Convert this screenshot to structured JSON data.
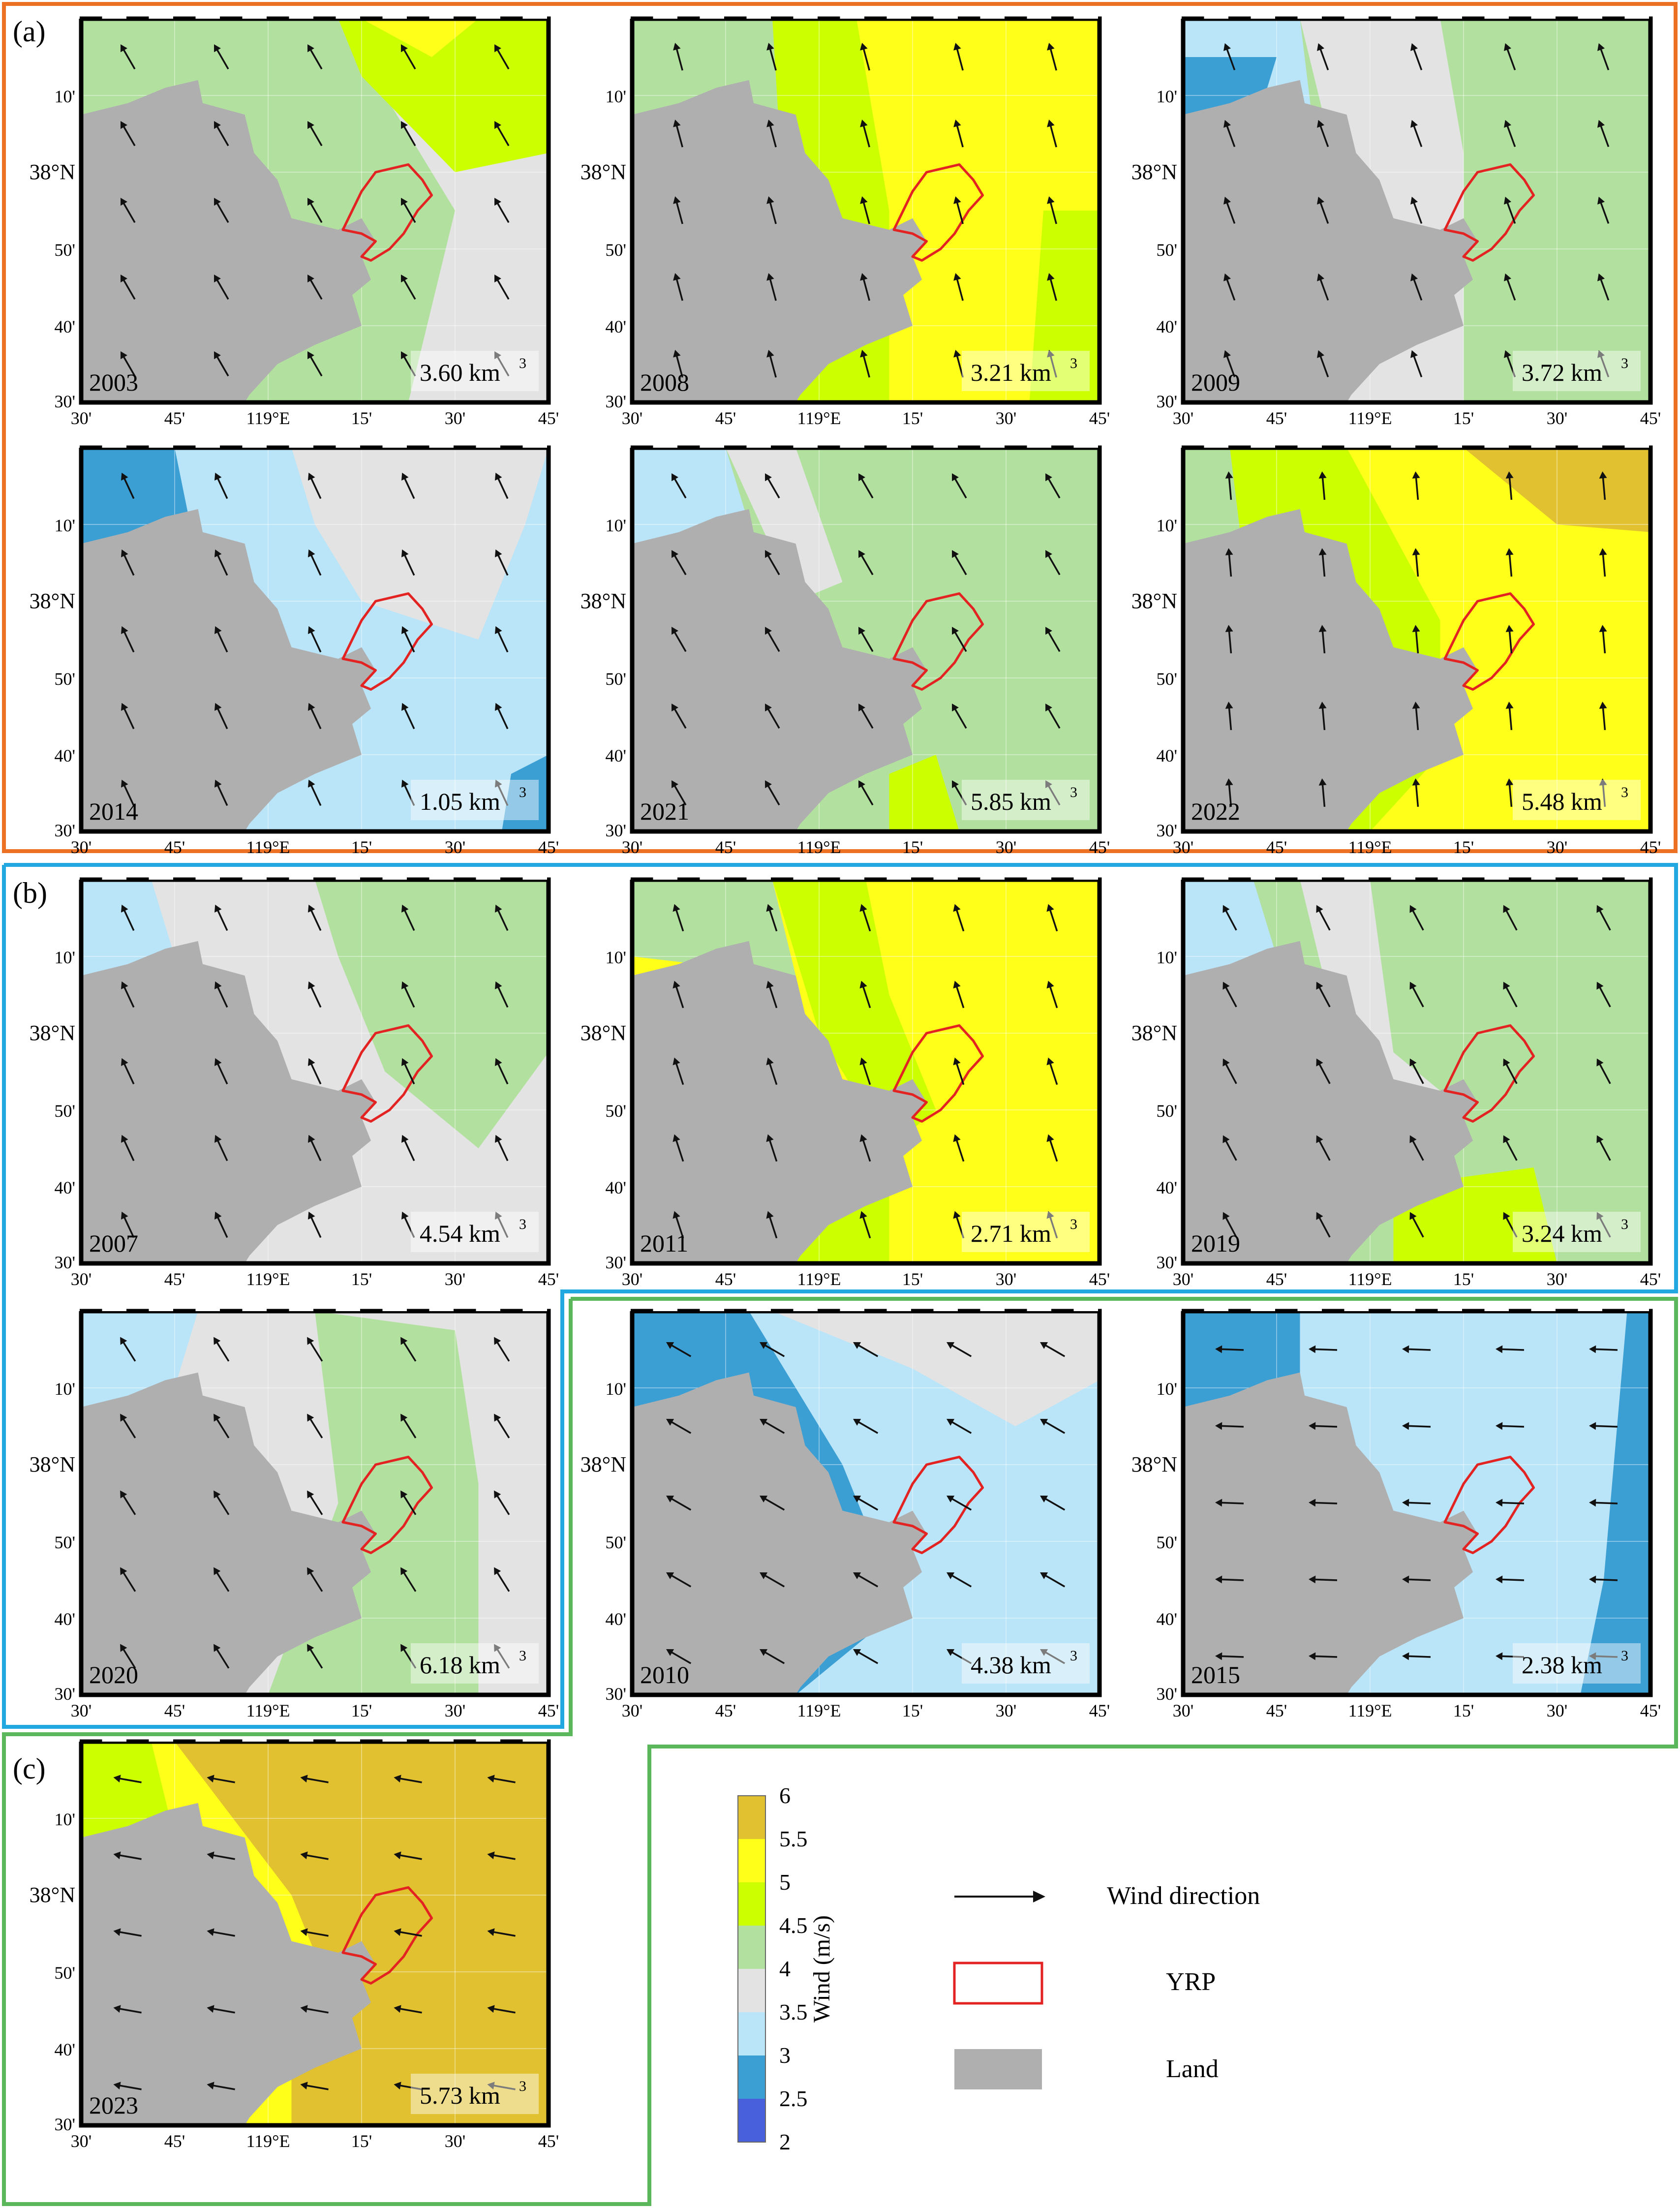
{
  "colors": {
    "frame_a": "#ED7125",
    "frame_b": "#22A8E0",
    "frame_c": "#5BB75B",
    "land": "#AFAFAF",
    "yrp": "#E32222",
    "wind_arrow": "#111111"
  },
  "groups": [
    {
      "id": "a",
      "label": "(a)"
    },
    {
      "id": "b",
      "label": "(b)"
    },
    {
      "id": "c",
      "label": "(c)"
    }
  ],
  "axis_ticks": {
    "x": [
      "30'",
      "45'",
      "119°E",
      "15'",
      "30'",
      "45'"
    ],
    "y": [
      "30'",
      "40'",
      "50'",
      "38°N",
      "10'"
    ]
  },
  "color_scale": {
    "ylabel": "Wind (m/s)",
    "ticks": [
      "6",
      "5.5",
      "5",
      "4.5",
      "4",
      "3.5",
      "3",
      "2.5",
      "2"
    ],
    "bands": [
      {
        "range": [
          5.5,
          6.0
        ],
        "color": "#E1C12F"
      },
      {
        "range": [
          5.0,
          5.5
        ],
        "color": "#FFFF19"
      },
      {
        "range": [
          4.5,
          5.0
        ],
        "color": "#CCFF00"
      },
      {
        "range": [
          4.0,
          4.5
        ],
        "color": "#B2E09E"
      },
      {
        "range": [
          3.5,
          4.0
        ],
        "color": "#E3E3E3"
      },
      {
        "range": [
          3.0,
          3.5
        ],
        "color": "#BAE4F8"
      },
      {
        "range": [
          2.5,
          3.0
        ],
        "color": "#3C9FD4"
      },
      {
        "range": [
          2.0,
          2.5
        ],
        "color": "#4960DD"
      }
    ]
  },
  "legend": {
    "wind": "Wind direction",
    "yrp": "YRP",
    "land": "Land"
  },
  "panels": [
    {
      "year": "2003",
      "volume": "3.60 km",
      "group": "a",
      "wind_angle": -30
    },
    {
      "year": "2008",
      "volume": "3.21 km",
      "group": "a",
      "wind_angle": -15
    },
    {
      "year": "2009",
      "volume": "3.72 km",
      "group": "a",
      "wind_angle": -20
    },
    {
      "year": "2014",
      "volume": "1.05 km",
      "group": "a",
      "wind_angle": -25
    },
    {
      "year": "2021",
      "volume": "5.85 km",
      "group": "a",
      "wind_angle": -30
    },
    {
      "year": "2022",
      "volume": "5.48 km",
      "group": "a",
      "wind_angle": -5
    },
    {
      "year": "2007",
      "volume": "4.54 km",
      "group": "b",
      "wind_angle": -25
    },
    {
      "year": "2011",
      "volume": "2.71 km",
      "group": "b",
      "wind_angle": -18
    },
    {
      "year": "2019",
      "volume": "3.24 km",
      "group": "b",
      "wind_angle": -28
    },
    {
      "year": "2020",
      "volume": "6.18 km",
      "group": "b",
      "wind_angle": -32
    },
    {
      "year": "2010",
      "volume": "4.38 km",
      "group": "c",
      "wind_angle": -60
    },
    {
      "year": "2015",
      "volume": "2.38 km",
      "group": "c",
      "wind_angle": -88
    },
    {
      "year": "2023",
      "volume": "5.73 km",
      "group": "c",
      "wind_angle": -80
    }
  ],
  "volume_superscript": "3"
}
